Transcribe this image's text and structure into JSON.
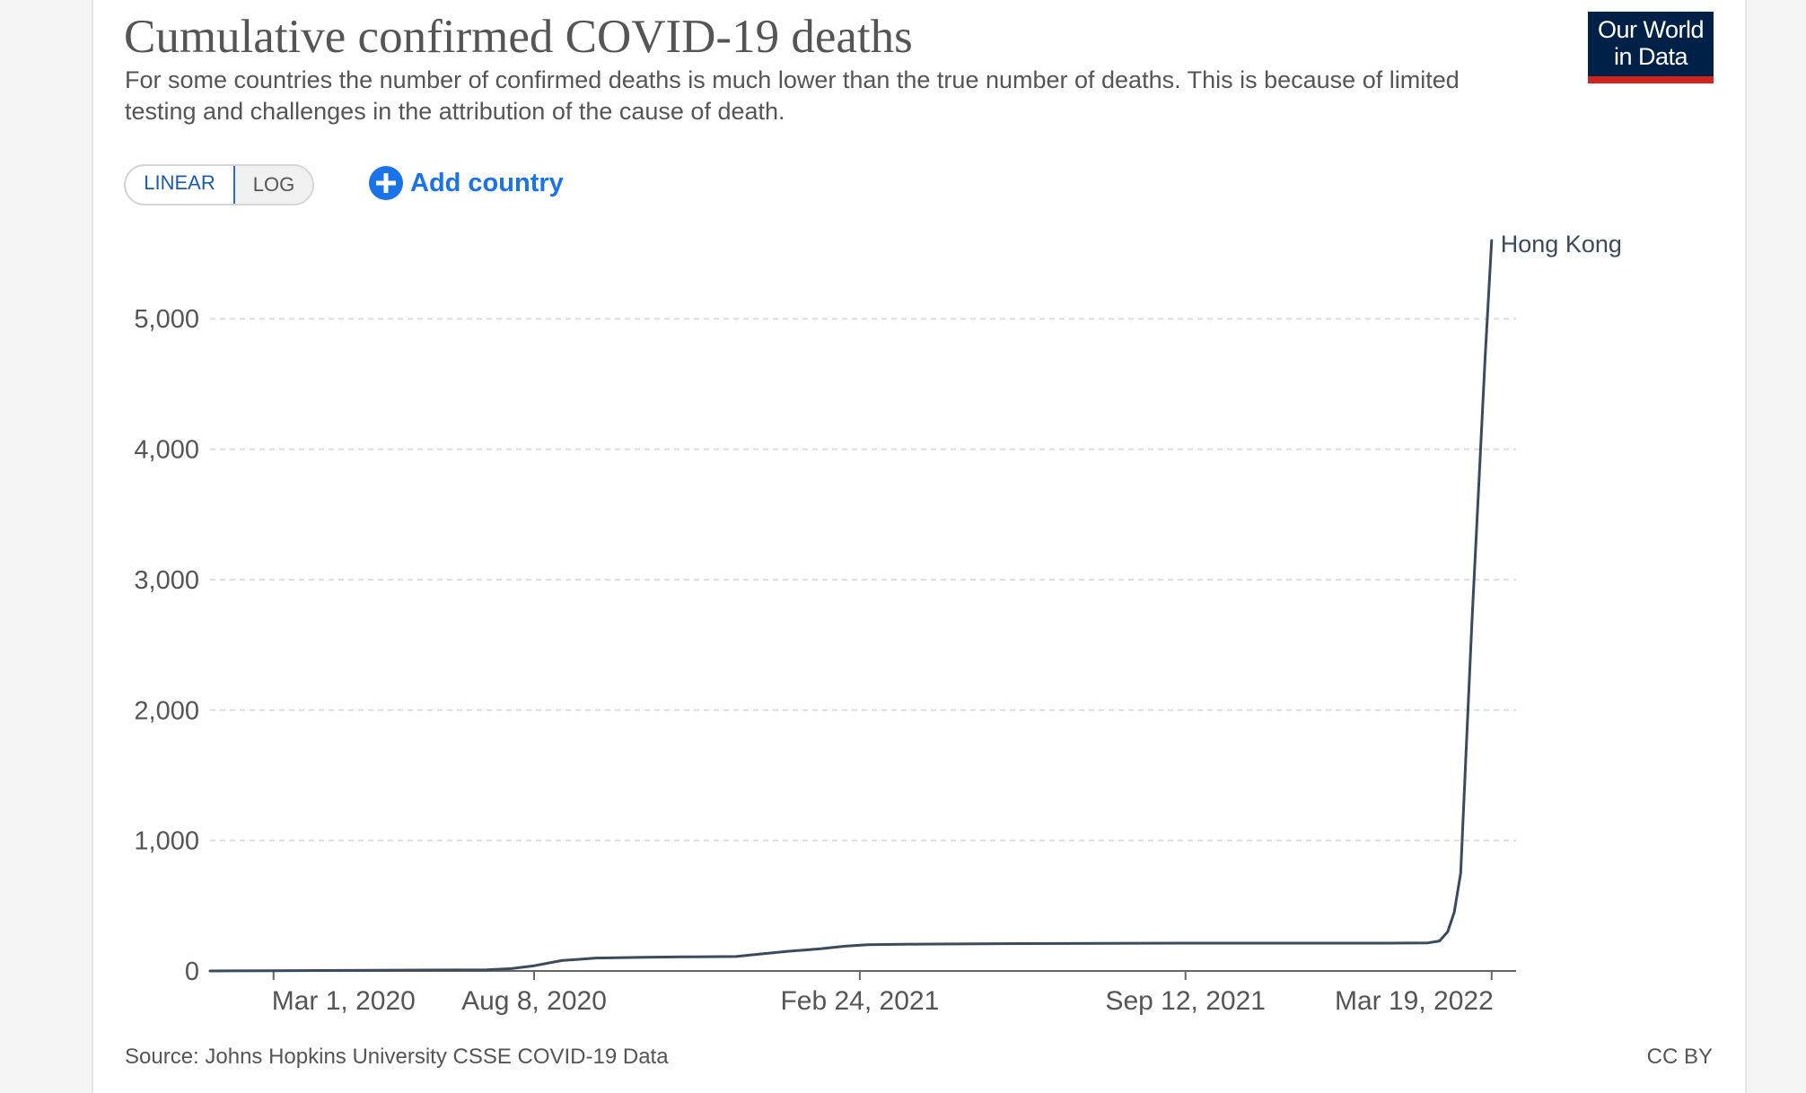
{
  "header": {
    "title": "Cumulative confirmed COVID-19 deaths",
    "subtitle": "For some countries the number of confirmed deaths is much lower than the true number of deaths. This is because of limited testing and challenges in the attribution of the cause of death."
  },
  "logo": {
    "line1": "Our World",
    "line2": "in Data"
  },
  "controls": {
    "linear_label": "LINEAR",
    "log_label": "LOG",
    "add_country_label": "Add country",
    "add_country_icon": "plus-circle-icon"
  },
  "footer": {
    "source": "Source: Johns Hopkins University CSSE COVID-19 Data",
    "license": "CC BY"
  },
  "colors": {
    "series": "#3b4a5c",
    "grid": "#dddddd",
    "axis": "#666666",
    "text": "#555555",
    "accent_blue": "#1a73e8",
    "logo_bg": "#002147",
    "logo_bar": "#ce261e"
  },
  "chart_data": {
    "type": "line",
    "xlabel": "",
    "ylabel": "",
    "ylim": [
      0,
      5600
    ],
    "xlim": [
      "2020-01-22",
      "2022-04-03"
    ],
    "yticks": [
      0,
      1000,
      2000,
      3000,
      4000,
      5000
    ],
    "ytick_labels": [
      "0",
      "1,000",
      "2,000",
      "3,000",
      "4,000",
      "5,000"
    ],
    "xticks": [
      "2020-03-01",
      "2020-08-08",
      "2021-02-24",
      "2021-09-12",
      "2022-03-19"
    ],
    "xtick_labels": [
      "Mar 1, 2020",
      "Aug 8, 2020",
      "Feb 24, 2021",
      "Sep 12, 2021",
      "Mar 19, 2022"
    ],
    "grid": true,
    "scale": "linear",
    "series": [
      {
        "name": "Hong Kong",
        "color": "#3b4a5c",
        "points": [
          [
            "2020-01-22",
            0
          ],
          [
            "2020-03-01",
            2
          ],
          [
            "2020-04-15",
            4
          ],
          [
            "2020-06-01",
            7
          ],
          [
            "2020-07-10",
            8
          ],
          [
            "2020-07-25",
            18
          ],
          [
            "2020-08-08",
            40
          ],
          [
            "2020-08-25",
            80
          ],
          [
            "2020-09-15",
            99
          ],
          [
            "2020-10-15",
            105
          ],
          [
            "2020-11-15",
            109
          ],
          [
            "2020-12-10",
            111
          ],
          [
            "2020-12-25",
            130
          ],
          [
            "2021-01-10",
            150
          ],
          [
            "2021-01-31",
            170
          ],
          [
            "2021-02-15",
            190
          ],
          [
            "2021-03-01",
            201
          ],
          [
            "2021-04-01",
            206
          ],
          [
            "2021-06-01",
            210
          ],
          [
            "2021-09-12",
            213
          ],
          [
            "2021-12-01",
            213
          ],
          [
            "2022-01-15",
            213
          ],
          [
            "2022-02-08",
            215
          ],
          [
            "2022-02-15",
            230
          ],
          [
            "2022-02-20",
            300
          ],
          [
            "2022-02-24",
            450
          ],
          [
            "2022-02-28",
            750
          ],
          [
            "2022-03-03",
            1600
          ],
          [
            "2022-03-07",
            2700
          ],
          [
            "2022-03-11",
            3700
          ],
          [
            "2022-03-15",
            4700
          ],
          [
            "2022-03-19",
            5600
          ]
        ]
      }
    ]
  }
}
